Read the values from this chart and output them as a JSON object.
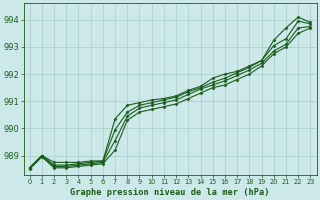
{
  "bg_color": "#cce8e8",
  "grid_color": "#aacccc",
  "line_color": "#1a5c1a",
  "marker_color": "#1a5c1a",
  "title": "Graphe pression niveau de la mer (hPa)",
  "title_color": "#1a5c1a",
  "xlim": [
    -0.5,
    23.5
  ],
  "ylim": [
    988.3,
    994.6
  ],
  "yticks": [
    989,
    990,
    991,
    992,
    993,
    994
  ],
  "xticks": [
    0,
    1,
    2,
    3,
    4,
    5,
    6,
    7,
    8,
    9,
    10,
    11,
    12,
    13,
    14,
    15,
    16,
    17,
    18,
    19,
    20,
    21,
    22,
    23
  ],
  "series": [
    [
      988.55,
      989.0,
      988.75,
      988.75,
      988.75,
      988.8,
      988.8,
      990.35,
      990.85,
      990.95,
      991.05,
      991.1,
      991.2,
      991.4,
      991.55,
      991.85,
      992.0,
      992.1,
      992.3,
      992.5,
      993.25,
      993.7,
      994.1,
      993.9
    ],
    [
      988.55,
      989.0,
      988.65,
      988.65,
      988.7,
      988.75,
      988.8,
      989.95,
      990.6,
      990.85,
      990.95,
      991.05,
      991.15,
      991.35,
      991.5,
      991.7,
      991.85,
      992.05,
      992.25,
      992.5,
      993.05,
      993.3,
      993.95,
      993.85
    ],
    [
      988.55,
      989.0,
      988.6,
      988.6,
      988.65,
      988.7,
      988.75,
      989.55,
      990.45,
      990.75,
      990.85,
      990.95,
      991.05,
      991.25,
      991.45,
      991.6,
      991.75,
      991.95,
      992.15,
      992.4,
      992.85,
      993.1,
      993.7,
      993.75
    ],
    [
      988.5,
      988.95,
      988.55,
      988.55,
      988.6,
      988.65,
      988.7,
      989.2,
      990.3,
      990.6,
      990.7,
      990.8,
      990.9,
      991.1,
      991.3,
      991.5,
      991.6,
      991.8,
      992.0,
      992.3,
      992.75,
      993.0,
      993.5,
      993.7
    ]
  ]
}
